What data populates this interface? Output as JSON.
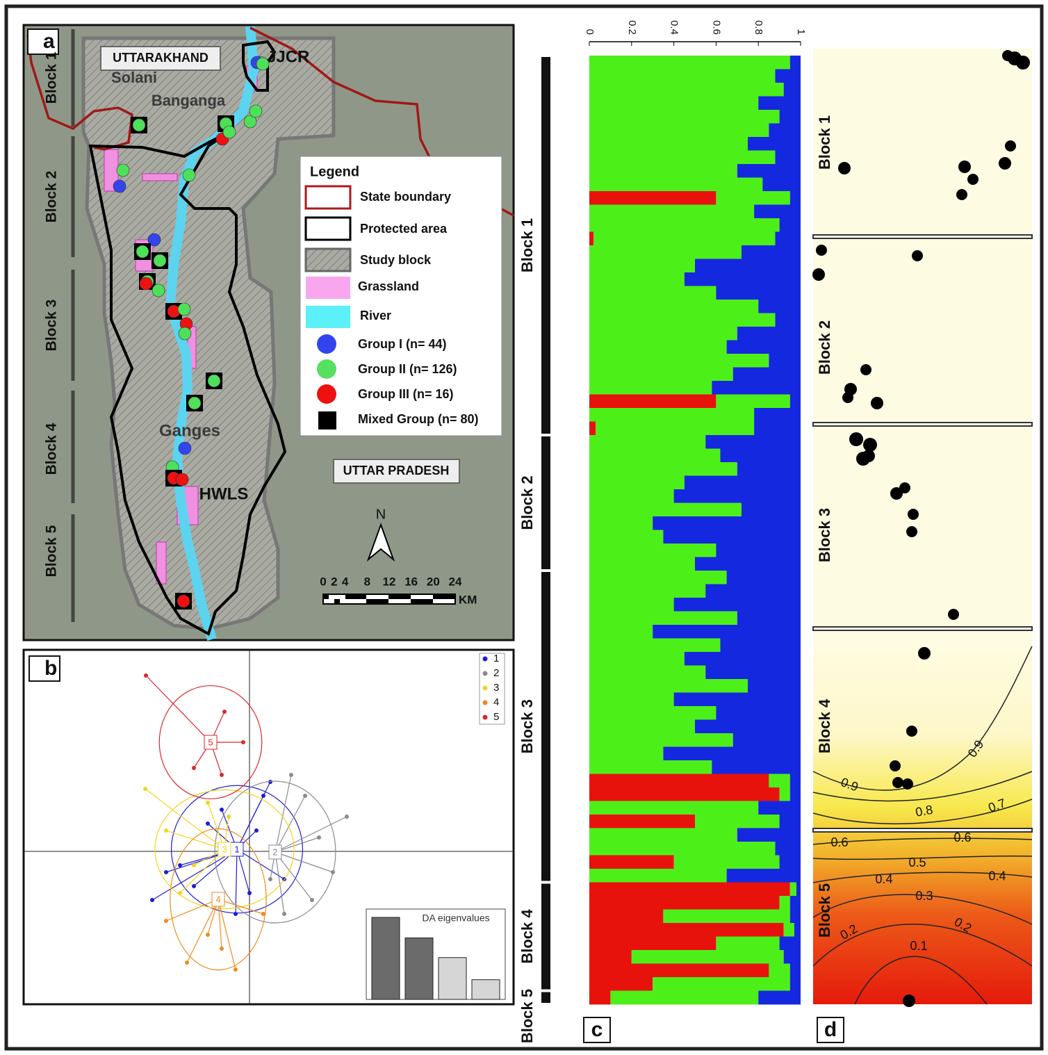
{
  "panel_a": {
    "label": "a",
    "places": [
      "UTTARAKHAND",
      "Solani",
      "Banganga",
      "JJCR",
      "Ganges",
      "HWLS",
      "UTTAR PRADESH"
    ],
    "blocks": [
      "Block 1",
      "Block 2",
      "Block 3",
      "Block 4",
      "Block 5"
    ],
    "legend": {
      "title": "Legend",
      "items": [
        "State boundary",
        "Protected area",
        "Study block",
        "Grassland",
        "River",
        "Group I (n= 44)",
        "Group II (n= 126)",
        "Group III (n= 16)",
        "Mixed Group (n= 80)"
      ]
    },
    "north": "N",
    "scale": {
      "ticks": [
        0,
        2,
        4,
        8,
        12,
        16,
        20,
        24
      ],
      "unit": "KM"
    }
  },
  "panel_b": {
    "label": "b",
    "groups": [
      {
        "name": "1",
        "color": "#1c1cd6",
        "centroid": [
          -1.8,
          0.3
        ],
        "points": [
          [
            -14,
            -7
          ],
          [
            -10,
            -2
          ],
          [
            -6,
            4
          ],
          [
            2,
            8
          ],
          [
            5,
            -4
          ],
          [
            -2,
            -9
          ],
          [
            1,
            3
          ],
          [
            -8,
            -5
          ],
          [
            3,
            10
          ],
          [
            -4,
            6
          ],
          [
            -12,
            -3
          ],
          [
            0,
            -6
          ]
        ]
      },
      {
        "name": "2",
        "color": "#8a8a92",
        "centroid": [
          3.7,
          -0.1
        ],
        "points": [
          [
            14,
            5
          ],
          [
            9,
            -7
          ],
          [
            6,
            11
          ],
          [
            10,
            2
          ],
          [
            12,
            -3
          ],
          [
            5,
            -9
          ],
          [
            8,
            8
          ],
          [
            3,
            -4
          ]
        ]
      },
      {
        "name": "3",
        "color": "#f2d51c",
        "centroid": [
          -3.6,
          0.3
        ],
        "points": [
          [
            -15,
            9
          ],
          [
            -12,
            3
          ],
          [
            -10,
            -6
          ],
          [
            -6,
            7
          ],
          [
            -8,
            -2
          ],
          [
            -3,
            5
          ]
        ]
      },
      {
        "name": "4",
        "color": "#ef8a1a",
        "centroid": [
          -4.5,
          -6.9
        ],
        "points": [
          [
            -9,
            -16
          ],
          [
            -2,
            -17
          ],
          [
            -6,
            -12
          ],
          [
            2,
            -9
          ],
          [
            -12,
            -10
          ],
          [
            -4,
            -14
          ]
        ]
      },
      {
        "name": "5",
        "color": "#d8292c",
        "centroid": [
          -5.6,
          15.7
        ],
        "points": [
          [
            -14.9,
            25.3
          ],
          [
            -3.6,
            20.1
          ],
          [
            -0.9,
            15.7
          ],
          [
            -8,
            12
          ],
          [
            -4,
            11
          ]
        ]
      }
    ],
    "eigen_title": "DA eigenvalues",
    "eigenvalues": [
      1,
      0.75,
      0.51,
      0.24
    ]
  },
  "panel_c": {
    "label": "c",
    "ticks": [
      0,
      0.2,
      0.4,
      0.6,
      0.8,
      1
    ],
    "colors": [
      "#e8120c",
      "#4cf018",
      "#1428e0"
    ],
    "blocks": [
      {
        "label": "Block 1",
        "individuals": [
          [
            0,
            0.95,
            0.05
          ],
          [
            0,
            0.88,
            0.12
          ],
          [
            0,
            0.92,
            0.08
          ],
          [
            0,
            0.8,
            0.2
          ],
          [
            0,
            0.9,
            0.1
          ],
          [
            0,
            0.85,
            0.15
          ],
          [
            0,
            0.75,
            0.25
          ],
          [
            0,
            0.88,
            0.12
          ],
          [
            0,
            0.7,
            0.3
          ],
          [
            0,
            0.82,
            0.18
          ],
          [
            0.6,
            0.35,
            0.05
          ],
          [
            0,
            0.78,
            0.22
          ],
          [
            0,
            0.9,
            0.1
          ],
          [
            0.02,
            0.86,
            0.12
          ],
          [
            0,
            0.72,
            0.28
          ],
          [
            0,
            0.5,
            0.5
          ],
          [
            0,
            0.45,
            0.55
          ],
          [
            0,
            0.6,
            0.4
          ],
          [
            0,
            0.8,
            0.2
          ],
          [
            0,
            0.88,
            0.12
          ],
          [
            0,
            0.7,
            0.3
          ],
          [
            0,
            0.65,
            0.35
          ],
          [
            0,
            0.85,
            0.15
          ],
          [
            0,
            0.68,
            0.32
          ],
          [
            0,
            0.58,
            0.42
          ],
          [
            0.6,
            0.35,
            0.05
          ],
          [
            0,
            0.78,
            0.22
          ],
          [
            0.03,
            0.75,
            0.22
          ]
        ]
      },
      {
        "label": "Block 2",
        "individuals": [
          [
            0,
            0.55,
            0.45
          ],
          [
            0,
            0.62,
            0.38
          ],
          [
            0,
            0.7,
            0.3
          ],
          [
            0,
            0.45,
            0.55
          ],
          [
            0,
            0.4,
            0.6
          ],
          [
            0,
            0.72,
            0.28
          ],
          [
            0,
            0.3,
            0.7
          ],
          [
            0,
            0.35,
            0.65
          ],
          [
            0,
            0.6,
            0.4
          ],
          [
            0,
            0.5,
            0.5
          ]
        ]
      },
      {
        "label": "Block 3",
        "individuals": [
          [
            0,
            0.65,
            0.35
          ],
          [
            0,
            0.55,
            0.45
          ],
          [
            0,
            0.4,
            0.6
          ],
          [
            0,
            0.7,
            0.3
          ],
          [
            0,
            0.3,
            0.7
          ],
          [
            0,
            0.62,
            0.38
          ],
          [
            0,
            0.45,
            0.55
          ],
          [
            0,
            0.55,
            0.45
          ],
          [
            0,
            0.75,
            0.25
          ],
          [
            0,
            0.4,
            0.6
          ],
          [
            0,
            0.6,
            0.4
          ],
          [
            0,
            0.5,
            0.5
          ],
          [
            0,
            0.68,
            0.32
          ],
          [
            0,
            0.35,
            0.65
          ],
          [
            0,
            0.58,
            0.42
          ],
          [
            0.85,
            0.1,
            0.05
          ],
          [
            0.9,
            0.05,
            0.05
          ],
          [
            0,
            0.8,
            0.2
          ],
          [
            0.5,
            0.4,
            0.1
          ],
          [
            0,
            0.7,
            0.3
          ],
          [
            0,
            0.88,
            0.12
          ],
          [
            0.4,
            0.5,
            0.1
          ],
          [
            0,
            0.65,
            0.35
          ]
        ]
      },
      {
        "label": "Block 4",
        "individuals": [
          [
            0.95,
            0.03,
            0.02
          ],
          [
            0.9,
            0.05,
            0.05
          ],
          [
            0.35,
            0.6,
            0.05
          ],
          [
            0.92,
            0.05,
            0.03
          ],
          [
            0.6,
            0.3,
            0.1
          ],
          [
            0.2,
            0.72,
            0.08
          ],
          [
            0.85,
            0.1,
            0.05
          ],
          [
            0.3,
            0.65,
            0.05
          ]
        ]
      },
      {
        "label": "Block 5",
        "individuals": [
          [
            0.1,
            0.7,
            0.2
          ]
        ]
      }
    ]
  },
  "panel_d": {
    "label": "d",
    "blocks": [
      "Block 1",
      "Block 2",
      "Block 3",
      "Block 4",
      "Block 5"
    ],
    "contour_labels": [
      0.9,
      0.9,
      0.8,
      0.7,
      0.6,
      0.6,
      0.5,
      0.4,
      0.4,
      0.3,
      0.2,
      0.2,
      0.1
    ]
  }
}
